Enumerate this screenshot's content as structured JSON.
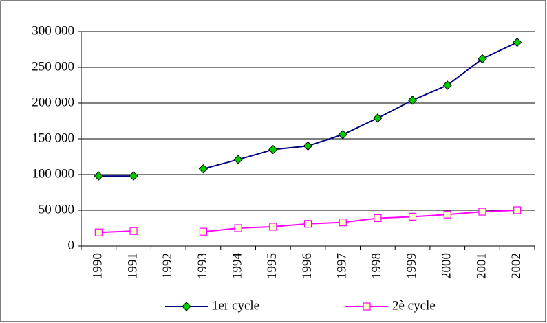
{
  "chart_data": {
    "type": "line",
    "categories": [
      "1990",
      "1991",
      "1992",
      "1993",
      "1994",
      "1995",
      "1996",
      "1997",
      "1998",
      "1999",
      "2000",
      "2001",
      "2002"
    ],
    "series": [
      {
        "name": "1er cycle",
        "color": "#000080",
        "marker": "diamond",
        "marker_color": "#00cc00",
        "values": [
          98000,
          98000,
          null,
          108000,
          121000,
          135000,
          140000,
          156000,
          179000,
          204000,
          225000,
          262000,
          285000
        ]
      },
      {
        "name": "2è cycle",
        "color": "#ff00ff",
        "marker": "square",
        "marker_color": "#ffffcc",
        "values": [
          19000,
          21000,
          null,
          20000,
          25000,
          27000,
          31000,
          33000,
          39000,
          41000,
          44000,
          48000,
          50000
        ]
      }
    ],
    "ylim": [
      0,
      300000
    ],
    "yticks": [
      0,
      {
        "value": 50000,
        "label": "50 000"
      },
      {
        "value": 100000,
        "label": "100 000"
      },
      {
        "value": 150000,
        "label": "150 000"
      },
      {
        "value": 200000,
        "label": "200 000"
      },
      {
        "value": 250000,
        "label": "250 000"
      },
      {
        "value": 300000,
        "label": "300 000"
      }
    ],
    "grid": true,
    "legend": "bottom"
  }
}
